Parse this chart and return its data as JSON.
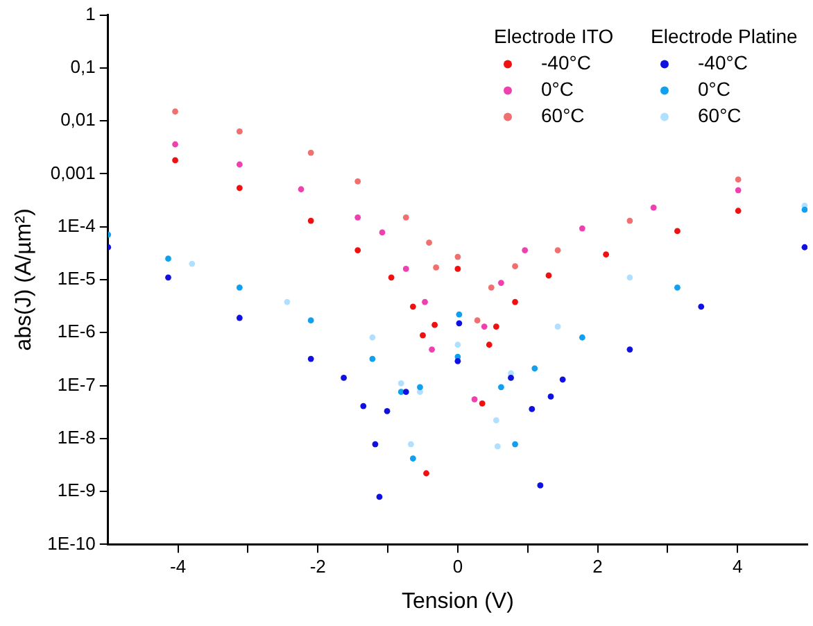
{
  "chart_data": {
    "type": "scatter",
    "xlabel": "Tension (V)",
    "ylabel": "abs(J) (A/µm²)",
    "log": "y",
    "xlim": [
      -5,
      5
    ],
    "ylim": [
      1e-10,
      1
    ],
    "xticks": [
      -4,
      {
        "value": -3,
        "label": null
      },
      -2,
      {
        "value": -1,
        "label": null
      },
      0,
      {
        "value": 1,
        "label": null
      },
      2,
      {
        "value": 3,
        "label": null
      },
      4
    ],
    "yticks": [
      {
        "value": 1e-10,
        "label": "1E-10"
      },
      {
        "value": 1e-09,
        "label": "1E-9"
      },
      {
        "value": 1e-08,
        "label": "1E-8"
      },
      {
        "value": 1e-07,
        "label": "1E-7"
      },
      {
        "value": 1e-06,
        "label": "1E-6"
      },
      {
        "value": 1e-05,
        "label": "1E-5"
      },
      {
        "value": 0.0001,
        "label": "1E-4"
      },
      {
        "value": 0.001,
        "label": "0,001"
      },
      {
        "value": 0.01,
        "label": "0,01"
      },
      {
        "value": 0.1,
        "label": "0,1"
      },
      1
    ],
    "grid": false,
    "legend": "top right",
    "marker": "circle",
    "annotations": [
      "Electrode ITO",
      "Electrode Platine"
    ],
    "series": [
      {
        "name": "-40°C",
        "color": "#f01010",
        "x": [
          -4.04,
          -3.12,
          -2.1,
          -1.43,
          -0.95,
          -0.64,
          -0.5,
          -0.45,
          -0.33,
          0,
          0.35,
          0.45,
          0.55,
          0.82,
          1.3,
          2.12,
          3.14,
          4.01
        ],
        "values": [
          0.0018,
          0.00054,
          0.00013,
          3.6e-05,
          1.1e-05,
          3.1e-06,
          8.9e-07,
          2.2e-09,
          1.4e-06,
          1.6e-05,
          4.6e-08,
          5.9e-07,
          1.3e-06,
          3.8e-06,
          1.2e-05,
          3e-05,
          8.3e-05,
          0.0002
        ]
      },
      {
        "name": "0°C",
        "color": "#f040b0",
        "x": [
          -4.04,
          -3.12,
          -2.24,
          -1.43,
          -1.08,
          -0.74,
          -0.47,
          -0.37,
          0.24,
          0.38,
          0.62,
          0.96,
          1.78,
          2.8,
          4.01
        ],
        "values": [
          0.0036,
          0.0015,
          0.00051,
          0.00015,
          7.8e-05,
          1.6e-05,
          3.8e-06,
          4.8e-07,
          5.5e-08,
          1.3e-06,
          8.7e-06,
          3.6e-05,
          9.3e-05,
          0.00023,
          0.00049
        ]
      },
      {
        "name": "60°C",
        "color": "#f07070",
        "x": [
          -4.04,
          -3.12,
          -2.1,
          -1.43,
          -0.74,
          -0.41,
          -0.31,
          0,
          0.28,
          0.48,
          0.82,
          1.43,
          2.46,
          4.01
        ],
        "values": [
          0.015,
          0.0063,
          0.0025,
          0.00072,
          0.00015,
          5e-05,
          1.7e-05,
          2.7e-05,
          1.7e-06,
          7.1e-06,
          1.8e-05,
          3.6e-05,
          0.00013,
          0.00078
        ]
      },
      {
        "name": "-40°C",
        "color": "#1010e0",
        "x": [
          -5,
          -4.14,
          -3.12,
          -2.1,
          -1.63,
          -1.35,
          -1.18,
          -1.12,
          -1.01,
          -0.74,
          0,
          0.02,
          0.76,
          1.06,
          1.18,
          1.33,
          1.5,
          2.46,
          3.48,
          4.96
        ],
        "values": [
          4.1e-05,
          1.1e-05,
          1.9e-06,
          3.2e-07,
          1.4e-07,
          4.1e-08,
          7.8e-09,
          7.9e-10,
          3.3e-08,
          7.6e-08,
          2.9e-07,
          1.5e-06,
          1.4e-07,
          3.6e-08,
          1.3e-09,
          6.2e-08,
          1.3e-07,
          4.8e-07,
          3.1e-06,
          4.1e-05
        ]
      },
      {
        "name": "0°C",
        "color": "#10a0f0",
        "x": [
          -5,
          -4.14,
          -3.12,
          -2.1,
          -1.22,
          -0.81,
          -0.64,
          -0.54,
          0,
          0.02,
          0.62,
          0.82,
          1.1,
          1.78,
          3.14,
          4.96
        ],
        "values": [
          7.1e-05,
          2.5e-05,
          7.1e-06,
          1.7e-06,
          3.2e-07,
          7.6e-08,
          4.2e-09,
          9.3e-08,
          3.5e-07,
          2.2e-06,
          9.3e-08,
          7.8e-09,
          2.1e-07,
          8.1e-07,
          7.1e-06,
          0.00021
        ]
      },
      {
        "name": "60°C",
        "color": "#b0e0ff",
        "x": [
          -3.8,
          -2.44,
          -1.22,
          -0.81,
          -0.67,
          -0.54,
          0,
          0.55,
          0.57,
          0.76,
          1.43,
          2.46,
          4.96
        ],
        "values": [
          2e-05,
          3.8e-06,
          8.1e-07,
          1.1e-07,
          7.8e-09,
          7.6e-08,
          5.9e-07,
          2.2e-08,
          7.1e-09,
          1.7e-07,
          1.3e-06,
          1.1e-05,
          0.00025
        ]
      }
    ]
  }
}
